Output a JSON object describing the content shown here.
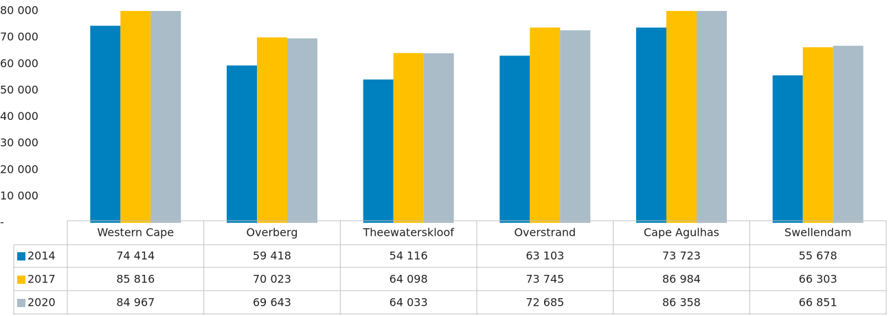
{
  "chart_data": {
    "type": "bar",
    "categories": [
      "Western Cape",
      "Overberg",
      "Theewaterskloof",
      "Overstrand",
      "Cape Agulhas",
      "Swellendam"
    ],
    "series": [
      {
        "name": "2014",
        "color": "#0081bf",
        "values": [
          74414,
          59418,
          54116,
          63103,
          73723,
          55678
        ],
        "value_labels": [
          "74 414",
          "59 418",
          "54 116",
          "63 103",
          "73 723",
          "55 678"
        ]
      },
      {
        "name": "2017",
        "color": "#ffc000",
        "values": [
          85816,
          70023,
          64098,
          73745,
          86984,
          66303
        ],
        "value_labels": [
          "85 816",
          "70 023",
          "64 098",
          "73 745",
          "86 984",
          "66 303"
        ]
      },
      {
        "name": "2020",
        "color": "#a9bcc8",
        "values": [
          84967,
          69643,
          64033,
          72685,
          86358,
          66851
        ],
        "value_labels": [
          "84 967",
          "69 643",
          "64 033",
          "72 685",
          "86 358",
          "66 851"
        ]
      }
    ],
    "ylim": [
      0,
      80000
    ],
    "yticks": [
      {
        "value": 0,
        "label": "-"
      },
      {
        "value": 10000,
        "label": "10 000"
      },
      {
        "value": 20000,
        "label": "20 000"
      },
      {
        "value": 30000,
        "label": "30 000"
      },
      {
        "value": 40000,
        "label": "40 000"
      },
      {
        "value": 50000,
        "label": "50 000"
      },
      {
        "value": 60000,
        "label": "60 000"
      },
      {
        "value": 70000,
        "label": "70 000"
      },
      {
        "value": 80000,
        "label": "80 000"
      }
    ]
  }
}
